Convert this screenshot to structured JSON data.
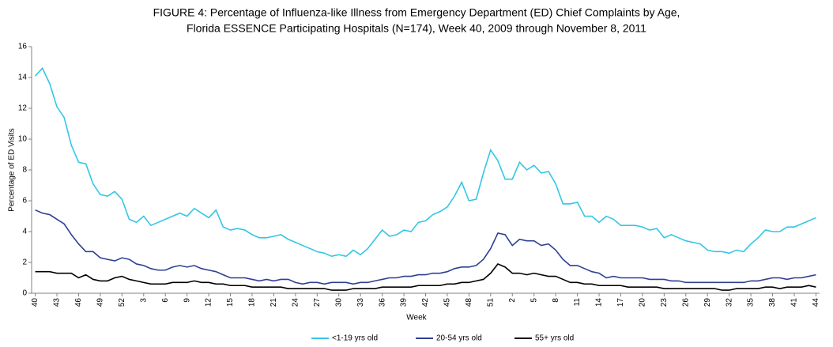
{
  "chart_data": {
    "type": "line",
    "title": [
      "FIGURE 4: Percentage of Influenza-like Illness from Emergency Department (ED) Chief Complaints by Age,",
      "Florida ESSENCE Participating Hospitals (N=174), Week 40, 2009 through November 8, 2011"
    ],
    "x_label": "Week",
    "y_label": "Percentage of ED Visits",
    "categories": [
      "40",
      null,
      null,
      "43",
      null,
      null,
      "46",
      null,
      null,
      "49",
      null,
      null,
      "52",
      null,
      null,
      "3",
      null,
      null,
      "6",
      null,
      null,
      "9",
      null,
      null,
      "12",
      null,
      null,
      "15",
      null,
      null,
      "18",
      null,
      null,
      "21",
      null,
      null,
      "24",
      null,
      null,
      "27",
      null,
      null,
      "30",
      null,
      null,
      "33",
      null,
      null,
      "36",
      null,
      null,
      "39",
      null,
      null,
      "42",
      null,
      null,
      "45",
      null,
      null,
      "48",
      null,
      null,
      "51",
      null,
      null,
      "2",
      null,
      null,
      "5",
      null,
      null,
      "8",
      null,
      null,
      "11",
      null,
      null,
      "14",
      null,
      null,
      "17",
      null,
      null,
      "20",
      null,
      null,
      "23",
      null,
      null,
      "26",
      null,
      null,
      "29",
      null,
      null,
      "32",
      null,
      null,
      "35",
      null,
      null,
      "38",
      null,
      null,
      "41",
      null,
      null,
      "44"
    ],
    "ylim": [
      0,
      16
    ],
    "yticks": [
      0,
      2,
      4,
      6,
      8,
      10,
      12,
      14,
      16
    ],
    "grid": false,
    "legend": "bottom",
    "series": [
      {
        "name": "<1-19 yrs old",
        "color": "#33c6e6",
        "values": [
          14.1,
          14.6,
          13.6,
          12.1,
          11.4,
          9.6,
          8.5,
          8.4,
          7.1,
          6.4,
          6.3,
          6.6,
          6.1,
          4.8,
          4.6,
          5.0,
          4.4,
          4.6,
          4.8,
          5.0,
          5.2,
          5.0,
          5.5,
          5.2,
          4.9,
          5.4,
          4.3,
          4.1,
          4.2,
          4.1,
          3.8,
          3.6,
          3.6,
          3.7,
          3.8,
          3.5,
          3.3,
          3.1,
          2.9,
          2.7,
          2.6,
          2.4,
          2.5,
          2.4,
          2.8,
          2.5,
          2.9,
          3.5,
          4.1,
          3.7,
          3.8,
          4.1,
          4.0,
          4.6,
          4.7,
          5.1,
          5.3,
          5.6,
          6.3,
          7.2,
          6.0,
          6.1,
          7.8,
          9.3,
          8.6,
          7.4,
          7.4,
          8.5,
          8.0,
          8.3,
          7.8,
          7.9,
          7.1,
          5.8,
          5.8,
          5.9,
          5.0,
          5.0,
          4.6,
          5.0,
          4.8,
          4.4,
          4.4,
          4.4,
          4.3,
          4.1,
          4.2,
          3.6,
          3.8,
          3.6,
          3.4,
          3.3,
          3.2,
          2.8,
          2.7,
          2.7,
          2.6,
          2.8,
          2.7,
          3.2,
          3.6,
          4.1,
          4.0,
          4.0,
          4.3,
          4.3,
          4.5,
          4.7,
          4.9
        ]
      },
      {
        "name": "20-54 yrs old",
        "color": "#2e3f94",
        "values": [
          5.4,
          5.2,
          5.1,
          4.8,
          4.5,
          3.8,
          3.2,
          2.7,
          2.7,
          2.3,
          2.2,
          2.1,
          2.3,
          2.2,
          1.9,
          1.8,
          1.6,
          1.5,
          1.5,
          1.7,
          1.8,
          1.7,
          1.8,
          1.6,
          1.5,
          1.4,
          1.2,
          1.0,
          1.0,
          1.0,
          0.9,
          0.8,
          0.9,
          0.8,
          0.9,
          0.9,
          0.7,
          0.6,
          0.7,
          0.7,
          0.6,
          0.7,
          0.7,
          0.7,
          0.6,
          0.7,
          0.7,
          0.8,
          0.9,
          1.0,
          1.0,
          1.1,
          1.1,
          1.2,
          1.2,
          1.3,
          1.3,
          1.4,
          1.6,
          1.7,
          1.7,
          1.8,
          2.2,
          2.9,
          3.9,
          3.8,
          3.1,
          3.5,
          3.4,
          3.4,
          3.1,
          3.2,
          2.8,
          2.2,
          1.8,
          1.8,
          1.6,
          1.4,
          1.3,
          1.0,
          1.1,
          1.0,
          1.0,
          1.0,
          1.0,
          0.9,
          0.9,
          0.9,
          0.8,
          0.8,
          0.7,
          0.7,
          0.7,
          0.7,
          0.7,
          0.7,
          0.7,
          0.7,
          0.7,
          0.8,
          0.8,
          0.9,
          1.0,
          1.0,
          0.9,
          1.0,
          1.0,
          1.1,
          1.2
        ]
      },
      {
        "name": "55+ yrs old",
        "color": "#000000",
        "values": [
          1.4,
          1.4,
          1.4,
          1.3,
          1.3,
          1.3,
          1.0,
          1.2,
          0.9,
          0.8,
          0.8,
          1.0,
          1.1,
          0.9,
          0.8,
          0.7,
          0.6,
          0.6,
          0.6,
          0.7,
          0.7,
          0.7,
          0.8,
          0.7,
          0.7,
          0.6,
          0.6,
          0.5,
          0.5,
          0.5,
          0.4,
          0.4,
          0.4,
          0.4,
          0.4,
          0.3,
          0.3,
          0.3,
          0.3,
          0.3,
          0.3,
          0.2,
          0.2,
          0.2,
          0.3,
          0.3,
          0.3,
          0.3,
          0.4,
          0.4,
          0.4,
          0.4,
          0.4,
          0.5,
          0.5,
          0.5,
          0.5,
          0.6,
          0.6,
          0.7,
          0.7,
          0.8,
          0.9,
          1.3,
          1.9,
          1.7,
          1.3,
          1.3,
          1.2,
          1.3,
          1.2,
          1.1,
          1.1,
          0.9,
          0.7,
          0.7,
          0.6,
          0.6,
          0.5,
          0.5,
          0.5,
          0.5,
          0.4,
          0.4,
          0.4,
          0.4,
          0.4,
          0.3,
          0.3,
          0.3,
          0.3,
          0.3,
          0.3,
          0.3,
          0.3,
          0.2,
          0.2,
          0.3,
          0.3,
          0.3,
          0.3,
          0.4,
          0.4,
          0.3,
          0.4,
          0.4,
          0.4,
          0.5,
          0.4
        ]
      }
    ]
  }
}
